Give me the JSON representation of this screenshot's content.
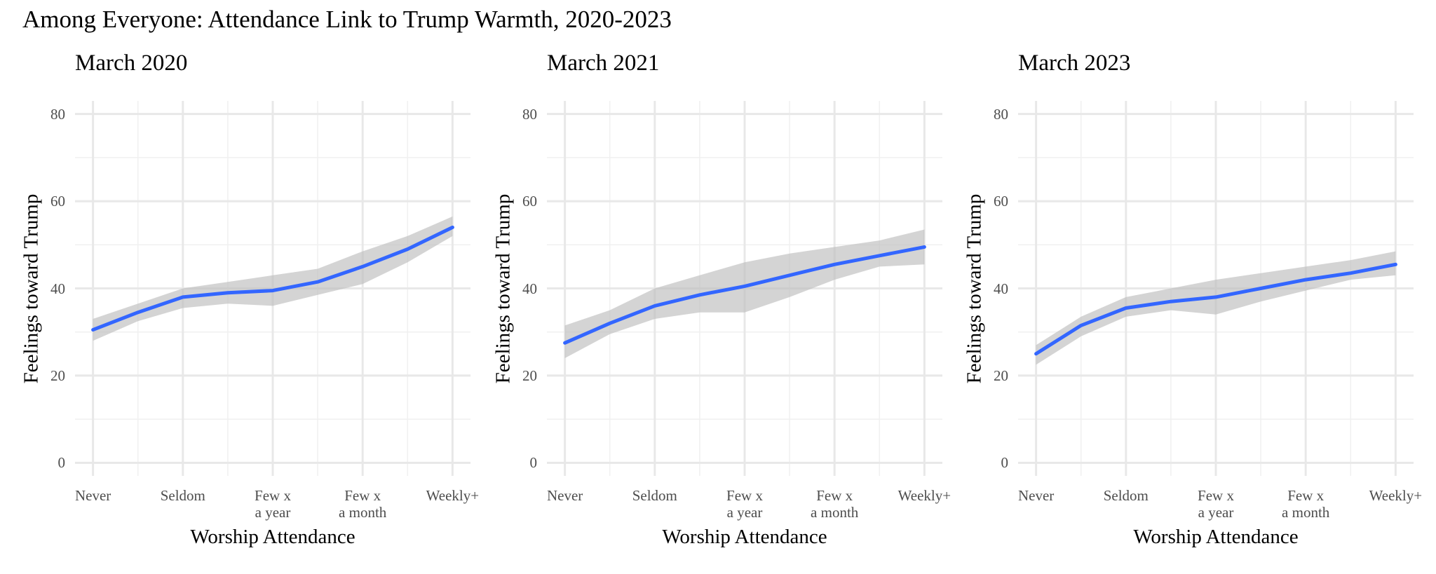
{
  "title": "Among Everyone: Attendance Link to Trump Warmth, 2020-2023",
  "chart_data": [
    {
      "type": "line",
      "title": "March 2020",
      "x_label": "Worship Attendance",
      "y_label": "Feelings toward Trump",
      "x": [
        1,
        1.5,
        2,
        2.5,
        3,
        3.5,
        4,
        4.5,
        5
      ],
      "series": [
        {
          "color": "#3366ff",
          "band_color": "#bdbdbd",
          "values": [
            30.5,
            34.5,
            38,
            39,
            39.5,
            41.5,
            45,
            49,
            54
          ],
          "lower": [
            28,
            32.5,
            35.5,
            36.5,
            36,
            38.5,
            41,
            46,
            52
          ],
          "upper": [
            33,
            36.5,
            40,
            41.5,
            43,
            44.5,
            48.5,
            52,
            56.5
          ]
        }
      ],
      "xlim": [
        0.8,
        5.2
      ],
      "ylim": [
        -3,
        83
      ],
      "xticks": [
        {
          "value": 1,
          "label": "Never"
        },
        {
          "value": 2,
          "label": "Seldom"
        },
        {
          "value": 3,
          "label": "Few x\na year"
        },
        {
          "value": 4,
          "label": "Few x\na month"
        },
        {
          "value": 5,
          "label": "Weekly+"
        }
      ],
      "xminor": [
        1.5,
        2.5,
        3.5,
        4.5
      ],
      "yticks": [
        0,
        20,
        40,
        60,
        80
      ],
      "yminor": [
        10,
        30,
        50,
        70
      ],
      "grid": true
    },
    {
      "type": "line",
      "title": "March 2021",
      "x_label": "Worship Attendance",
      "y_label": "Feelings toward Trump",
      "x": [
        1,
        1.5,
        2,
        2.5,
        3,
        3.5,
        4,
        4.5,
        5
      ],
      "series": [
        {
          "color": "#3366ff",
          "band_color": "#bdbdbd",
          "values": [
            27.5,
            32,
            36,
            38.5,
            40.5,
            43,
            45.5,
            47.5,
            49.5
          ],
          "lower": [
            24,
            29.5,
            33,
            34.5,
            34.5,
            38,
            42,
            45,
            45.5
          ],
          "upper": [
            31.5,
            35,
            40,
            43,
            46,
            48,
            49.5,
            51,
            53.5
          ]
        }
      ],
      "xlim": [
        0.8,
        5.2
      ],
      "ylim": [
        -3,
        83
      ],
      "xticks": [
        {
          "value": 1,
          "label": "Never"
        },
        {
          "value": 2,
          "label": "Seldom"
        },
        {
          "value": 3,
          "label": "Few x\na year"
        },
        {
          "value": 4,
          "label": "Few x\na month"
        },
        {
          "value": 5,
          "label": "Weekly+"
        }
      ],
      "xminor": [
        1.5,
        2.5,
        3.5,
        4.5
      ],
      "yticks": [
        0,
        20,
        40,
        60,
        80
      ],
      "yminor": [
        10,
        30,
        50,
        70
      ],
      "grid": true
    },
    {
      "type": "line",
      "title": "March 2023",
      "x_label": "Worship Attendance",
      "y_label": "Feelings toward Trump",
      "x": [
        1,
        1.5,
        2,
        2.5,
        3,
        3.5,
        4,
        4.5,
        5
      ],
      "series": [
        {
          "color": "#3366ff",
          "band_color": "#bdbdbd",
          "values": [
            25,
            31.5,
            35.5,
            37,
            38,
            40,
            42,
            43.5,
            45.5
          ],
          "lower": [
            22.5,
            29,
            33.5,
            35,
            34,
            37,
            39.5,
            42,
            43
          ],
          "upper": [
            27,
            33.5,
            38,
            40,
            42,
            43.5,
            45,
            46.5,
            48.5
          ]
        }
      ],
      "xlim": [
        0.8,
        5.2
      ],
      "ylim": [
        -3,
        83
      ],
      "xticks": [
        {
          "value": 1,
          "label": "Never"
        },
        {
          "value": 2,
          "label": "Seldom"
        },
        {
          "value": 3,
          "label": "Few x\na year"
        },
        {
          "value": 4,
          "label": "Few x\na month"
        },
        {
          "value": 5,
          "label": "Weekly+"
        }
      ],
      "xminor": [
        1.5,
        2.5,
        3.5,
        4.5
      ],
      "yticks": [
        0,
        20,
        40,
        60,
        80
      ],
      "yminor": [
        10,
        30,
        50,
        70
      ],
      "grid": true
    }
  ]
}
